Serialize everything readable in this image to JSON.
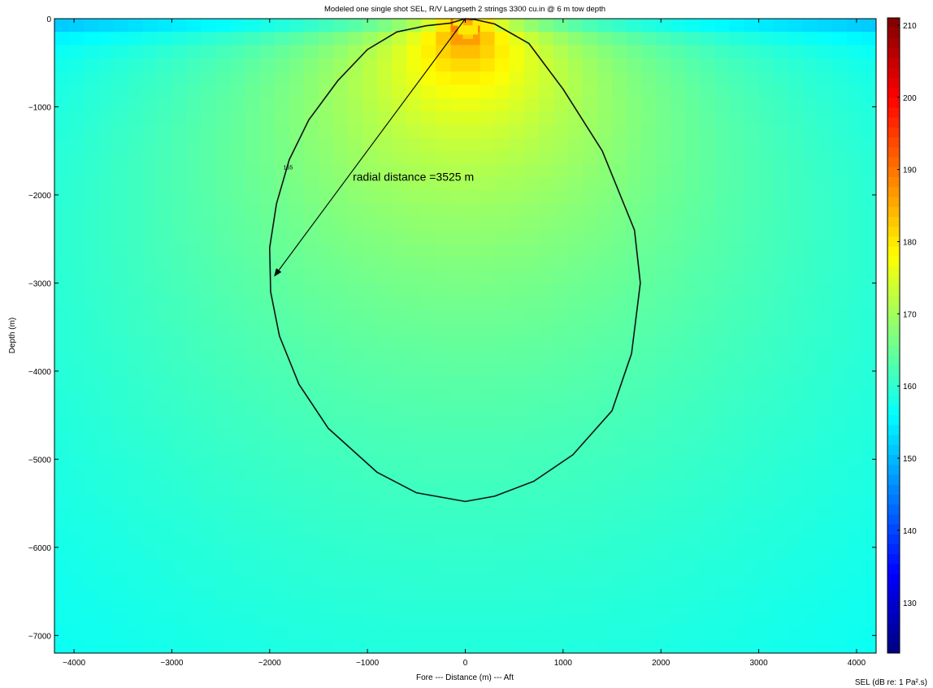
{
  "chart_data": {
    "type": "heatmap",
    "title": "Modeled one single shot SEL, R/V Langseth 2 strings 3300 cu.in @ 6 m tow depth",
    "xlabel": "Fore --- Distance (m) --- Aft",
    "ylabel": "Depth (m)",
    "colorbar_label": "SEL (dB re: 1  Pa².s)",
    "xlim": [
      -4200,
      4200
    ],
    "ylim": [
      -7200,
      0
    ],
    "clim": [
      123,
      211
    ],
    "colormap": "jet",
    "x_ticks": [
      {
        "value": -4000,
        "label": "−4000"
      },
      {
        "value": -3000,
        "label": "−3000"
      },
      {
        "value": -2000,
        "label": "−2000"
      },
      {
        "value": -1000,
        "label": "−1000"
      },
      {
        "value": 0,
        "label": "0"
      },
      {
        "value": 1000,
        "label": "1000"
      },
      {
        "value": 2000,
        "label": "2000"
      },
      {
        "value": 3000,
        "label": "3000"
      },
      {
        "value": 4000,
        "label": "4000"
      }
    ],
    "y_ticks": [
      {
        "value": 0,
        "label": "0"
      },
      {
        "value": -1000,
        "label": "−1000"
      },
      {
        "value": -2000,
        "label": "−2000"
      },
      {
        "value": -3000,
        "label": "−3000"
      },
      {
        "value": -4000,
        "label": "−4000"
      },
      {
        "value": -5000,
        "label": "−5000"
      },
      {
        "value": -6000,
        "label": "−6000"
      },
      {
        "value": -7000,
        "label": "−7000"
      }
    ],
    "colorbar_ticks": [
      {
        "value": 130,
        "label": "130"
      },
      {
        "value": 140,
        "label": "140"
      },
      {
        "value": 150,
        "label": "150"
      },
      {
        "value": 160,
        "label": "160"
      },
      {
        "value": 170,
        "label": "170"
      },
      {
        "value": 180,
        "label": "180"
      },
      {
        "value": 190,
        "label": "190"
      },
      {
        "value": 200,
        "label": "200"
      },
      {
        "value": 210,
        "label": "210"
      }
    ],
    "source": {
      "x": 0,
      "depth": -6
    },
    "contour": {
      "level": 155,
      "label": "155",
      "points": [
        [
          0,
          0
        ],
        [
          -150,
          -50
        ],
        [
          -400,
          -80
        ],
        [
          -700,
          -150
        ],
        [
          -1000,
          -350
        ],
        [
          -1300,
          -700
        ],
        [
          -1600,
          -1150
        ],
        [
          -1800,
          -1600
        ],
        [
          -1930,
          -2100
        ],
        [
          -2000,
          -2600
        ],
        [
          -1990,
          -3100
        ],
        [
          -1900,
          -3600
        ],
        [
          -1700,
          -4150
        ],
        [
          -1400,
          -4650
        ],
        [
          -900,
          -5150
        ],
        [
          -500,
          -5380
        ],
        [
          0,
          -5480
        ],
        [
          300,
          -5420
        ],
        [
          700,
          -5250
        ],
        [
          1100,
          -4950
        ],
        [
          1500,
          -4450
        ],
        [
          1700,
          -3800
        ],
        [
          1790,
          -3000
        ],
        [
          1730,
          -2400
        ],
        [
          1400,
          -1500
        ],
        [
          1000,
          -800
        ],
        [
          650,
          -280
        ],
        [
          300,
          -60
        ],
        [
          100,
          -10
        ],
        [
          0,
          0
        ]
      ]
    },
    "annotations": [
      {
        "text": "radial distance =3525 m",
        "x": -1150,
        "y": -1840
      },
      {
        "type": "arrow",
        "from": [
          0,
          0
        ],
        "to": [
          -1950,
          -2920
        ]
      }
    ]
  }
}
